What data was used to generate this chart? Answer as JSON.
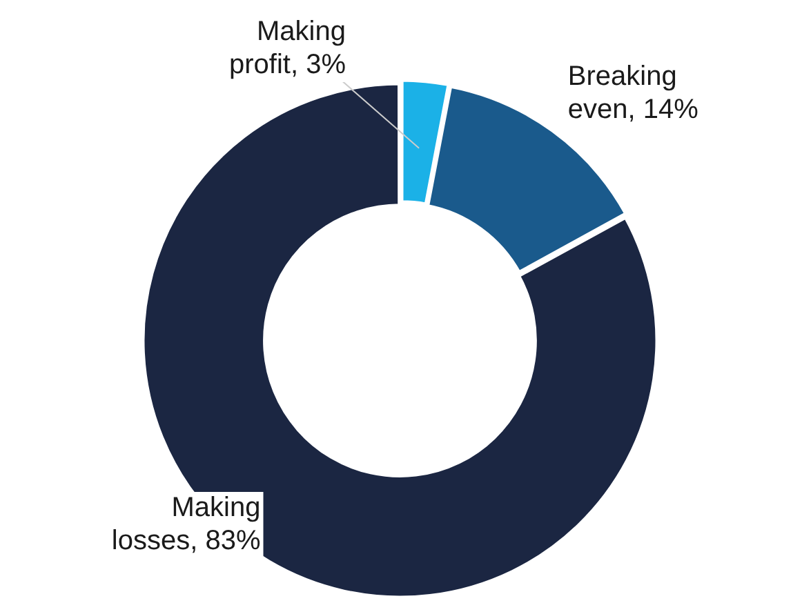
{
  "chart_data": {
    "type": "donut",
    "categories": [
      "Making profit",
      "Breaking even",
      "Making losses"
    ],
    "values": [
      3,
      14,
      83
    ],
    "colors": [
      "#1bb1e7",
      "#1a5a8c",
      "#1b2642"
    ],
    "value_labels": [
      "3%",
      "14%",
      "83%"
    ],
    "legend": false
  }
}
